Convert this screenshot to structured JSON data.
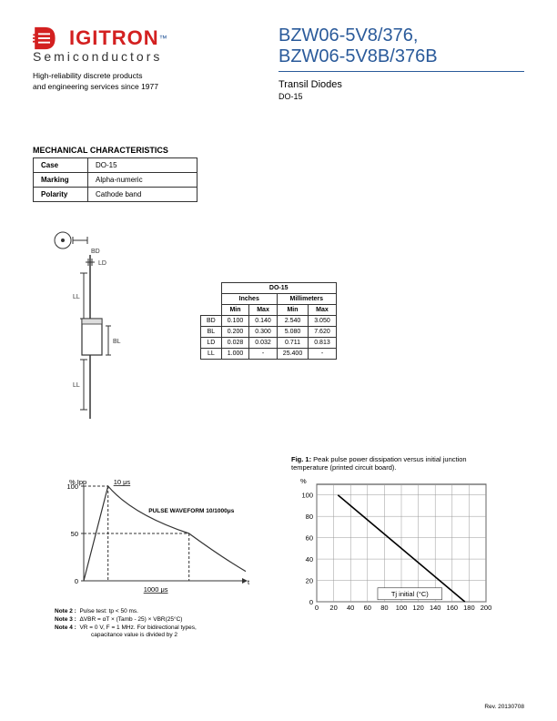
{
  "logo": {
    "mark_color": "#d32020",
    "text": "IGITRON",
    "text_color": "#d32020",
    "tm": "™",
    "tm_color": "#2a5a9a",
    "sub": "Semiconductors",
    "sub_color": "#333333"
  },
  "tagline_l1": "High-reliability discrete products",
  "tagline_l2": "and engineering services since 1977",
  "title_l1": "BZW06-5V8/376,",
  "title_l2": "BZW06-5V8B/376B",
  "subtitle": "Transil Diodes",
  "subtitle2": "DO-15",
  "mech": {
    "heading": "MECHANICAL CHARACTERISTICS",
    "rows": [
      {
        "k": "Case",
        "v": "DO-15"
      },
      {
        "k": "Marking",
        "v": "Alpha-numeric"
      },
      {
        "k": "Polarity",
        "v": "Cathode band"
      }
    ]
  },
  "diagram_labels": {
    "bd": "BD",
    "ld": "LD",
    "ll": "LL",
    "bl": "BL"
  },
  "dim_table": {
    "header_main": "DO-15",
    "header_units": [
      "Inches",
      "Millimeters"
    ],
    "header_sub": [
      "Min",
      "Max",
      "Min",
      "Max"
    ],
    "rows": [
      {
        "k": "BD",
        "v": [
          "0.100",
          "0.140",
          "2.540",
          "3.050"
        ]
      },
      {
        "k": "BL",
        "v": [
          "0.200",
          "0.300",
          "5.080",
          "7.620"
        ]
      },
      {
        "k": "LD",
        "v": [
          "0.028",
          "0.032",
          "0.711",
          "0.813"
        ]
      },
      {
        "k": "LL",
        "v": [
          "1.000",
          "-",
          "25.400",
          "-"
        ]
      }
    ]
  },
  "chart1": {
    "type": "line-waveform",
    "ylabel": "% Ipp",
    "yticks": [
      0,
      50,
      100
    ],
    "xlabel": "t",
    "annotation_top": "10 μs",
    "annotation_main": "PULSE WAVEFORM 10/1000μs",
    "annotation_bottom": "1000 μs",
    "axis_color": "#333333",
    "line_color": "#333333",
    "font_size": 7.5,
    "peak_x": 30,
    "tail50_x": 130,
    "xmax": 200
  },
  "chart2": {
    "type": "line",
    "caption_bold": "Fig. 1:",
    "caption": " Peak pulse power dissipation versus initial junction temperature (printed circuit board).",
    "ylabel": "%",
    "xlabel": "Tj initial (°C)",
    "xticks": [
      0,
      20,
      40,
      60,
      80,
      100,
      120,
      140,
      160,
      180,
      200
    ],
    "yticks": [
      0,
      20,
      40,
      60,
      80,
      100
    ],
    "xlim": [
      0,
      200
    ],
    "ylim": [
      0,
      110
    ],
    "grid_color": "#999999",
    "axis_color": "#333333",
    "line_color": "#000000",
    "series": [
      [
        25,
        100
      ],
      [
        175,
        0
      ]
    ],
    "font_size": 7.5,
    "bg": "#ffffff"
  },
  "notes": {
    "n2": {
      "label": "Note 2 :",
      "text": "Pulse test: tp < 50 ms."
    },
    "n3": {
      "label": "Note 3 :",
      "text": "ΔVBR = αT × (Tamb - 25) × VBR(25°C)"
    },
    "n4": {
      "label": "Note 4 :",
      "text1": "VR = 0 V,  F = 1 MHz. For bidirectional types,",
      "text2": "capacitance value is divided by 2"
    }
  },
  "revision": "Rev. 20130708"
}
